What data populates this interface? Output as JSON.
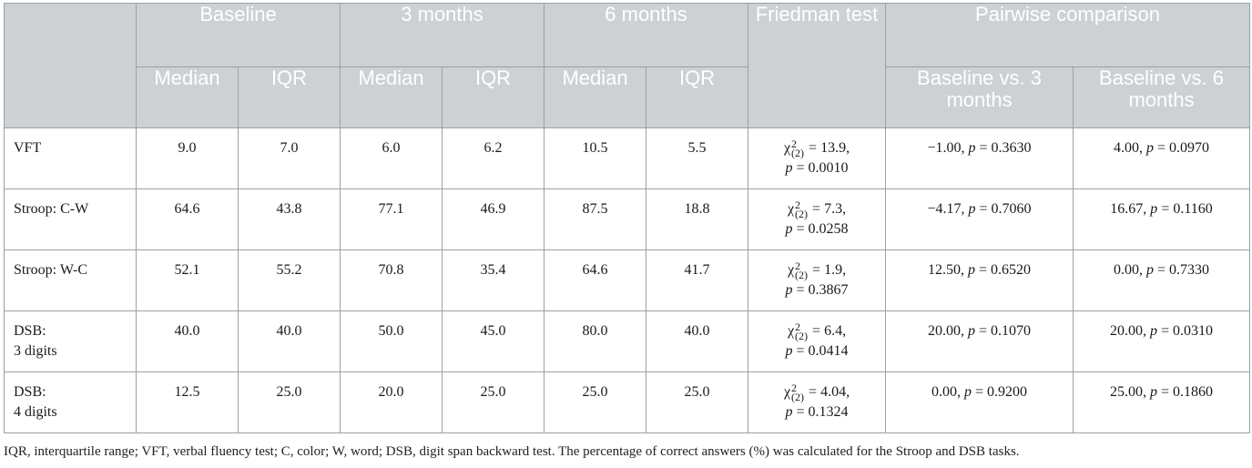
{
  "header": {
    "top": {
      "baseline": "Baseline",
      "m3": "3 months",
      "m6": "6 months",
      "friedman": "Friedman test",
      "pairwise": "Pairwise comparison"
    },
    "sub": {
      "median": "Median",
      "iqr": "IQR",
      "bl_vs_3": "Baseline vs. 3 months",
      "bl_vs_6": "Baseline vs. 6 months"
    }
  },
  "rows": [
    {
      "label1": "VFT",
      "label2": "",
      "b_med": "9.0",
      "b_iqr": "7.0",
      "m3_med": "6.0",
      "m3_iqr": "6.2",
      "m6_med": "10.5",
      "m6_iqr": "5.5",
      "chi_val": "13.9,",
      "p_val": "0.0010",
      "pw3_val": "−1.00,",
      "pw3_p": "0.3630",
      "pw6_val": "4.00,",
      "pw6_p": "0.0970"
    },
    {
      "label1": "Stroop: C-W",
      "label2": "",
      "b_med": "64.6",
      "b_iqr": "43.8",
      "m3_med": "77.1",
      "m3_iqr": "46.9",
      "m6_med": "87.5",
      "m6_iqr": "18.8",
      "chi_val": "7.3,",
      "p_val": "0.0258",
      "pw3_val": "−4.17,",
      "pw3_p": "0.7060",
      "pw6_val": "16.67,",
      "pw6_p": "0.1160"
    },
    {
      "label1": "Stroop: W-C",
      "label2": "",
      "b_med": "52.1",
      "b_iqr": "55.2",
      "m3_med": "70.8",
      "m3_iqr": "35.4",
      "m6_med": "64.6",
      "m6_iqr": "41.7",
      "chi_val": "1.9,",
      "p_val": "0.3867",
      "pw3_val": "12.50,",
      "pw3_p": "0.6520",
      "pw6_val": "0.00,",
      "pw6_p": "0.7330"
    },
    {
      "label1": "DSB:",
      "label2": "3 digits",
      "b_med": "40.0",
      "b_iqr": "40.0",
      "m3_med": "50.0",
      "m3_iqr": "45.0",
      "m6_med": "80.0",
      "m6_iqr": "40.0",
      "chi_val": "6.4,",
      "p_val": "0.0414",
      "pw3_val": "20.00,",
      "pw3_p": "0.1070",
      "pw6_val": "20.00,",
      "pw6_p": "0.0310"
    },
    {
      "label1": "DSB:",
      "label2": "4 digits",
      "b_med": "12.5",
      "b_iqr": "25.0",
      "m3_med": "20.0",
      "m3_iqr": "25.0",
      "m6_med": "25.0",
      "m6_iqr": "25.0",
      "chi_val": "4.04,",
      "p_val": "0.1324",
      "pw3_val": "0.00,",
      "pw3_p": "0.9200",
      "pw6_val": "25.00,",
      "pw6_p": "0.1860"
    }
  ],
  "footnote": "IQR, interquartile range; VFT, verbal fluency test; C, color; W, word; DSB, digit span backward test. The percentage of correct answers (%) was calculated for the Stroop and DSB tasks."
}
